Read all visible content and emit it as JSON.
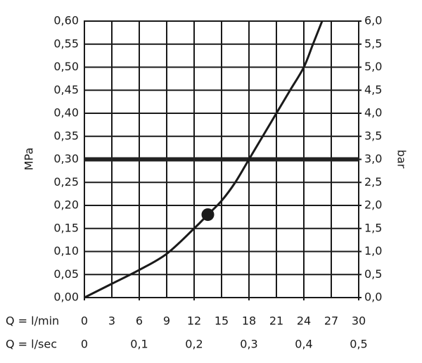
{
  "chart_data": {
    "type": "line",
    "y_label": "MPa",
    "y2_label": "bar",
    "x_label": "Q = l/min",
    "x2_label": "Q = l/sec",
    "xlim": [
      0,
      30
    ],
    "xticks": [
      0,
      3,
      6,
      9,
      12,
      15,
      18,
      21,
      24,
      27,
      30
    ],
    "x2lim": [
      0,
      0.5
    ],
    "x2ticks": [
      0,
      {
        "value": 0.1,
        "label": "0,1"
      },
      {
        "value": 0.2,
        "label": "0,2"
      },
      {
        "value": 0.3,
        "label": "0,3"
      },
      {
        "value": 0.4,
        "label": "0,4"
      },
      {
        "value": 0.5,
        "label": "0,5"
      }
    ],
    "ylim": [
      0,
      0.6
    ],
    "yticks": [
      {
        "value": 0,
        "label": "0,00"
      },
      {
        "value": 0.05,
        "label": "0,05"
      },
      {
        "value": 0.1,
        "label": "0,10"
      },
      {
        "value": 0.15,
        "label": "0,15"
      },
      {
        "value": 0.2,
        "label": "0,20"
      },
      {
        "value": 0.25,
        "label": "0,25"
      },
      {
        "value": 0.3,
        "label": "0,30"
      },
      {
        "value": 0.35,
        "label": "0,35"
      },
      {
        "value": 0.4,
        "label": "0,40"
      },
      {
        "value": 0.45,
        "label": "0,45"
      },
      {
        "value": 0.5,
        "label": "0,50"
      },
      {
        "value": 0.55,
        "label": "0,55"
      },
      {
        "value": 0.6,
        "label": "0,60"
      }
    ],
    "y2lim": [
      0,
      6
    ],
    "y2ticks": [
      {
        "value": 0,
        "label": "0,0"
      },
      {
        "value": 0.5,
        "label": "0,5"
      },
      {
        "value": 1,
        "label": "1,0"
      },
      {
        "value": 1.5,
        "label": "1,5"
      },
      {
        "value": 2,
        "label": "2,0"
      },
      {
        "value": 2.5,
        "label": "2,5"
      },
      {
        "value": 3,
        "label": "3,0"
      },
      {
        "value": 3.5,
        "label": "3,5"
      },
      {
        "value": 4,
        "label": "4,0"
      },
      {
        "value": 4.5,
        "label": "4,5"
      },
      {
        "value": 5,
        "label": "5,0"
      },
      {
        "value": 5.5,
        "label": "5,5"
      },
      {
        "value": 6,
        "label": "6,0"
      }
    ],
    "grid": true,
    "series": [
      {
        "color": "#1a1a1a",
        "x": [
          0,
          3,
          6,
          9,
          12,
          13.5,
          15,
          16.5,
          18,
          19.5,
          21,
          22.5,
          24,
          25,
          26
        ],
        "values": [
          0,
          0.03,
          0.06,
          0.095,
          0.15,
          0.18,
          0.21,
          0.25,
          0.3,
          0.35,
          0.4,
          0.45,
          0.5,
          0.55,
          0.6
        ]
      }
    ],
    "marker_point": {
      "x": 13.5,
      "y": 0.18
    },
    "reference_line": {
      "y": 0.3
    },
    "drop_line": {
      "x": 18,
      "y": 0.3
    }
  }
}
